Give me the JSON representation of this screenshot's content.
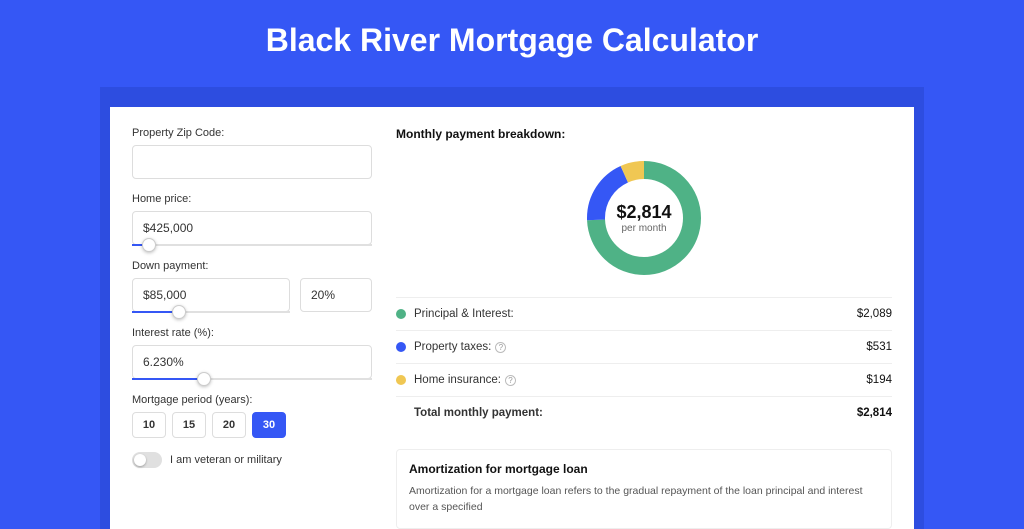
{
  "title": "Black River Mortgage Calculator",
  "colors": {
    "pageBg": "#3557f5",
    "shadowBg": "#2d4de0",
    "panelBg": "#ffffff",
    "border": "#dddddd",
    "text": "#333333"
  },
  "form": {
    "zip": {
      "label": "Property Zip Code:",
      "value": ""
    },
    "homePrice": {
      "label": "Home price:",
      "value": "$425,000",
      "sliderPct": 7
    },
    "downPayment": {
      "label": "Down payment:",
      "amount": "$85,000",
      "pct": "20%",
      "sliderPct": 20
    },
    "rate": {
      "label": "Interest rate (%):",
      "value": "6.230%",
      "sliderPct": 30
    },
    "period": {
      "label": "Mortgage period (years):",
      "options": [
        "10",
        "15",
        "20",
        "30"
      ],
      "active": "30"
    },
    "veteran": {
      "label": "I am veteran or military",
      "on": false
    }
  },
  "breakdown": {
    "title": "Monthly payment breakdown:",
    "centerAmount": "$2,814",
    "centerSub": "per month",
    "donut": {
      "radius": 48,
      "strokeWidth": 18,
      "total": 2814,
      "slices": [
        {
          "key": "principal",
          "value": 2089,
          "color": "#4fb286"
        },
        {
          "key": "taxes",
          "value": 531,
          "color": "#3557f5"
        },
        {
          "key": "insurance",
          "value": 194,
          "color": "#f0c753"
        }
      ]
    },
    "legend": [
      {
        "key": "principal",
        "label": "Principal & Interest:",
        "value": "$2,089",
        "help": false
      },
      {
        "key": "taxes",
        "label": "Property taxes:",
        "value": "$531",
        "help": true
      },
      {
        "key": "insurance",
        "label": "Home insurance:",
        "value": "$194",
        "help": true
      }
    ],
    "total": {
      "label": "Total monthly payment:",
      "value": "$2,814"
    }
  },
  "amortization": {
    "title": "Amortization for mortgage loan",
    "text": "Amortization for a mortgage loan refers to the gradual repayment of the loan principal and interest over a specified"
  }
}
